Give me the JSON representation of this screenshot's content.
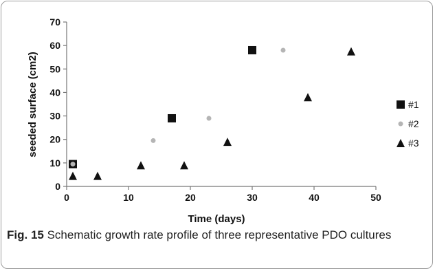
{
  "chart_data": {
    "type": "scatter",
    "xlabel": "Time (days)",
    "ylabel": "seeded surface (cm2)",
    "xlim": [
      0,
      50
    ],
    "ylim": [
      0,
      70
    ],
    "xticks": [
      0,
      10,
      20,
      30,
      40,
      50
    ],
    "yticks": [
      0,
      10,
      20,
      30,
      40,
      50,
      60,
      70
    ],
    "grid": false,
    "legend_position": "right",
    "series": [
      {
        "name": "#1",
        "marker": "square",
        "color": "#111111",
        "x": [
          1,
          17,
          30
        ],
        "y": [
          9.5,
          29,
          58
        ]
      },
      {
        "name": "#2",
        "marker": "circle",
        "color": "#b5b5b5",
        "x": [
          1,
          14,
          23,
          35
        ],
        "y": [
          9.5,
          19.5,
          29,
          58
        ]
      },
      {
        "name": "#3",
        "marker": "triangle",
        "color": "#111111",
        "x": [
          1,
          5,
          12,
          19,
          26,
          39,
          46
        ],
        "y": [
          4.5,
          4.5,
          9,
          9,
          19,
          38,
          57.5
        ]
      }
    ]
  },
  "caption": {
    "label": "Fig. 15",
    "text": " Schematic growth rate profile of three representative PDO cultures"
  }
}
